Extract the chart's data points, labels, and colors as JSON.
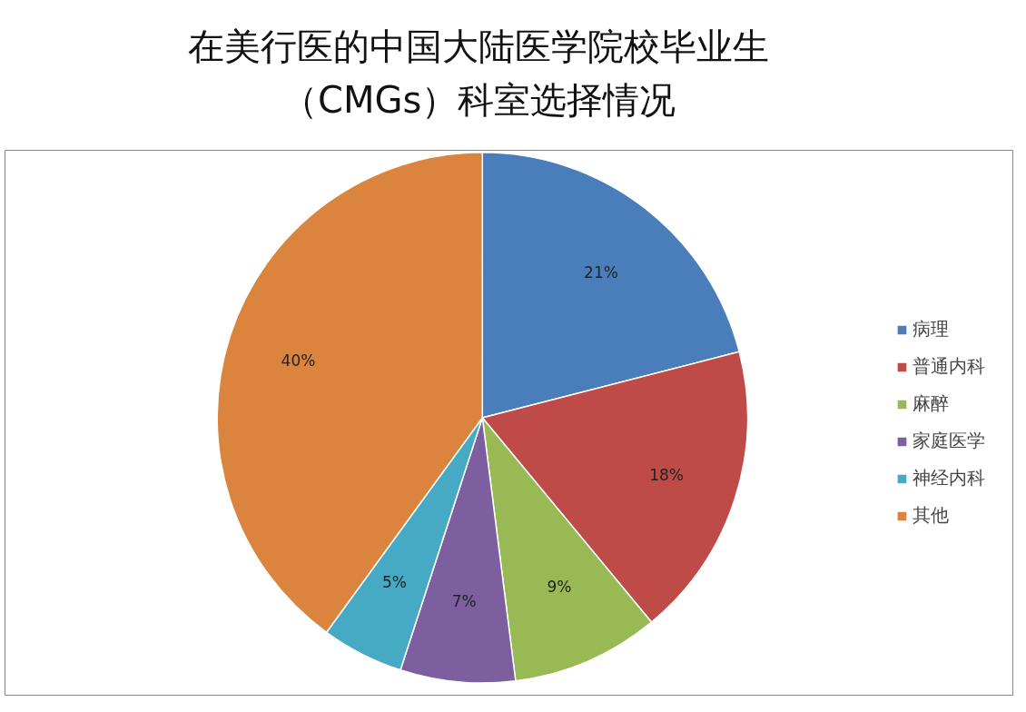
{
  "chart_data": {
    "type": "pie",
    "title": "在美行医的中国大陆医学院校毕业生（CMGs）科室选择情况",
    "categories": [
      "病理",
      "普通内科",
      "麻醉",
      "家庭医学",
      "神经内科",
      "其他"
    ],
    "values": [
      21,
      18,
      9,
      7,
      5,
      40
    ],
    "colors": [
      "#4a7ebb",
      "#be4b48",
      "#98b954",
      "#7d5fa0",
      "#46aac5",
      "#db843d"
    ],
    "value_labels": [
      "21%",
      "18%",
      "9%",
      "7%",
      "5%",
      "40%"
    ],
    "legend": "right"
  }
}
